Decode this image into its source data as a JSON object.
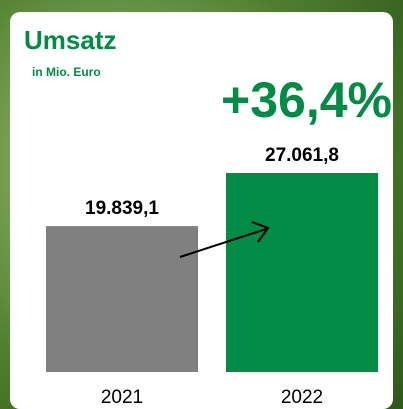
{
  "chart_data": {
    "type": "bar",
    "title": "Umsatz",
    "subtitle": "in Mio. Euro",
    "annotation": "+36,4%",
    "categories": [
      "2021",
      "2022"
    ],
    "values": [
      19839.1,
      27061.8
    ],
    "value_labels": [
      "19.839,1",
      "27.061,8"
    ],
    "colors": [
      "#808080",
      "#008c45"
    ],
    "ylim": [
      0,
      29000
    ]
  }
}
